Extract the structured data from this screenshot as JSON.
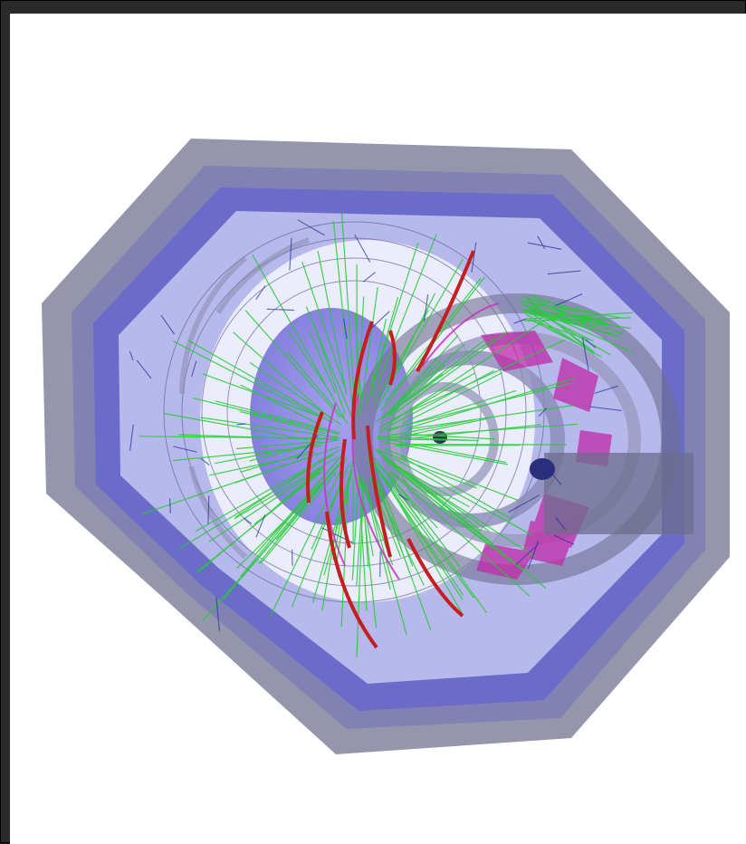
{
  "image": {
    "background": "#ffffff",
    "frame_color": "#2a2a2a",
    "colors": {
      "outer_shell": "#8a8aa3",
      "inner_shell": "#6b6bc9",
      "chamber": "#b7b8ec",
      "tracks_green": "#22cc33",
      "tracks_red": "#c41e1e",
      "tracks_blue": "#1f2f9a",
      "endcap_magenta": "#c02aa8",
      "inner_purple": "#7a6fe0"
    }
  }
}
